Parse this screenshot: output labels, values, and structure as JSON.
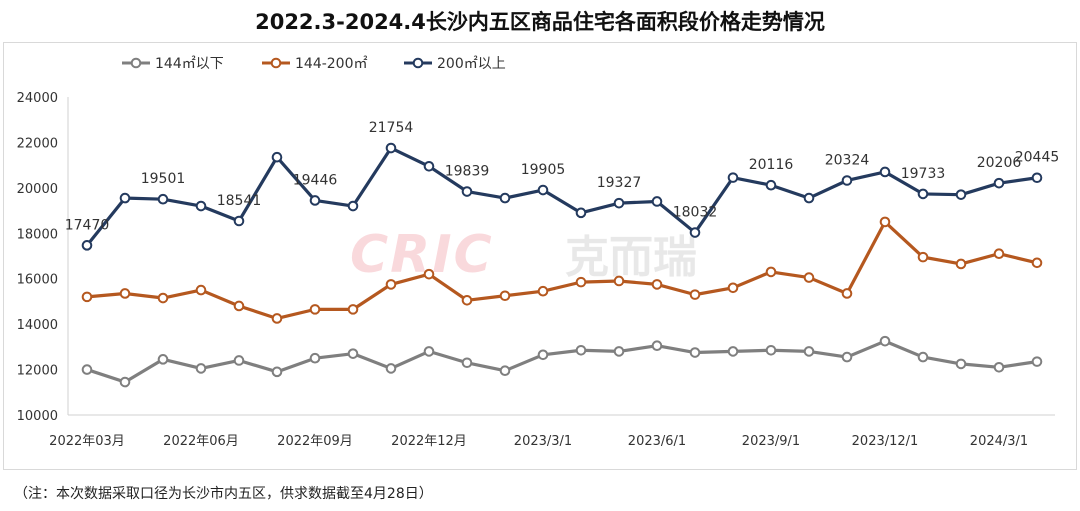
{
  "title": "2022.3-2024.4长沙内五区商品住宅各面积段价格走势情况",
  "note": "（注：本次数据采取口径为长沙市内五区，供求数据截至4月28日）",
  "watermark": {
    "brand": "CRIC",
    "cn": "克而瑞"
  },
  "chart_data": {
    "type": "line",
    "title": "2022.3-2024.4长沙内五区商品住宅各面积段价格走势情况",
    "ylim": [
      10000,
      24000
    ],
    "yticks": [
      10000,
      12000,
      14000,
      16000,
      18000,
      20000,
      22000,
      24000
    ],
    "x_tick_labels": [
      {
        "i": 0,
        "label": "2022年03月"
      },
      {
        "i": 3,
        "label": "2022年06月"
      },
      {
        "i": 6,
        "label": "2022年09月"
      },
      {
        "i": 9,
        "label": "2022年12月"
      },
      {
        "i": 12,
        "label": "2023/3/1"
      },
      {
        "i": 15,
        "label": "2023/6/1"
      },
      {
        "i": 18,
        "label": "2023/9/1"
      },
      {
        "i": 21,
        "label": "2023/12/1"
      },
      {
        "i": 24,
        "label": "2024/3/1"
      }
    ],
    "legend_position": "top-left",
    "series": [
      {
        "name": "144㎡以下",
        "color": "#7f7f7f",
        "values": [
          12000,
          11450,
          12450,
          12050,
          12400,
          11900,
          12500,
          12700,
          12050,
          12800,
          12300,
          11950,
          12650,
          12850,
          12800,
          13050,
          12750,
          12800,
          12850,
          12800,
          12550,
          13250,
          12550,
          12250,
          12100,
          12350
        ]
      },
      {
        "name": "144-200㎡",
        "color": "#b5581f",
        "values": [
          15200,
          15350,
          15150,
          15500,
          14800,
          14250,
          14650,
          14650,
          15750,
          16200,
          15050,
          15250,
          15450,
          15850,
          15900,
          15750,
          15300,
          15600,
          16300,
          16050,
          15350,
          18500,
          16950,
          16650,
          17100,
          16700
        ]
      },
      {
        "name": "200㎡以上",
        "color": "#243a5e",
        "values": [
          17470,
          19550,
          19501,
          19200,
          18541,
          21350,
          19446,
          19200,
          21754,
          20950,
          19839,
          19550,
          19905,
          18900,
          19327,
          19400,
          18032,
          20450,
          20116,
          19550,
          20324,
          20700,
          19733,
          19700,
          20206,
          20445
        ]
      }
    ],
    "data_labels": [
      {
        "i": 0,
        "text": "17470"
      },
      {
        "i": 2,
        "text": "19501"
      },
      {
        "i": 4,
        "text": "18541"
      },
      {
        "i": 6,
        "text": "19446"
      },
      {
        "i": 8,
        "text": "21754"
      },
      {
        "i": 10,
        "text": "19839"
      },
      {
        "i": 12,
        "text": "19905"
      },
      {
        "i": 14,
        "text": "19327"
      },
      {
        "i": 16,
        "text": "18032"
      },
      {
        "i": 18,
        "text": "20116"
      },
      {
        "i": 20,
        "text": "20324"
      },
      {
        "i": 22,
        "text": "19733"
      },
      {
        "i": 24,
        "text": "20206"
      },
      {
        "i": 25,
        "text": "20445"
      }
    ]
  }
}
